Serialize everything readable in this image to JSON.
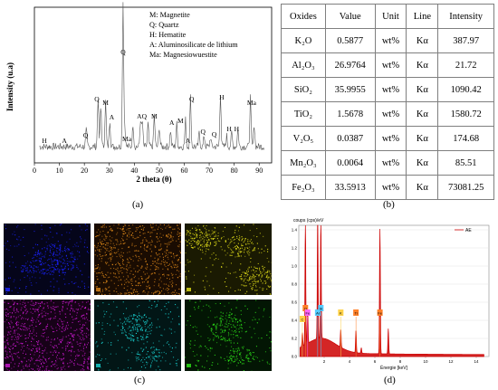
{
  "xrd": {
    "ylabel": "Intensity (u.a)",
    "xlabel": "2 theta (θ)",
    "legend": [
      "M: Magnetite",
      "Q: Quartz",
      "H: Hematite",
      "A: Aluminosilicate de lithium",
      "Ma: Magnesiowuestite"
    ],
    "xticks": [
      "0",
      "10",
      "20",
      "30",
      "40",
      "50",
      "60",
      "70",
      "80",
      "90"
    ],
    "peak_labels": [
      {
        "t": "H",
        "x": 4
      },
      {
        "t": "A",
        "x": 12
      },
      {
        "t": "Q",
        "x": 20.5
      },
      {
        "t": "Q",
        "x": 25
      },
      {
        "t": "M",
        "x": 28.5
      },
      {
        "t": "A",
        "x": 31
      },
      {
        "t": "Q",
        "x": 35.5
      },
      {
        "t": "Ma",
        "x": 37
      },
      {
        "t": "A",
        "x": 42
      },
      {
        "t": "Q",
        "x": 44
      },
      {
        "t": "M",
        "x": 48
      },
      {
        "t": "A",
        "x": 55
      },
      {
        "t": "M",
        "x": 58.5
      },
      {
        "t": "A",
        "x": 61.5
      },
      {
        "t": "Q",
        "x": 63
      },
      {
        "t": "Q",
        "x": 67.5
      },
      {
        "t": "Q",
        "x": 72
      },
      {
        "t": "H",
        "x": 75
      },
      {
        "t": "H",
        "x": 78
      },
      {
        "t": "H",
        "x": 81
      },
      {
        "t": "Ma",
        "x": 87
      }
    ],
    "caption": "(a)"
  },
  "table": {
    "headers": [
      "Oxides",
      "Value",
      "Unit",
      "Line",
      "Intensity"
    ],
    "rows": [
      {
        "oxide": "K₂O",
        "value": "0.5877",
        "unit": "wt%",
        "line": "Kα",
        "intensity": "387.97"
      },
      {
        "oxide": "Al₂O₃",
        "value": "26.9764",
        "unit": "wt%",
        "line": "Kα",
        "intensity": "21.72"
      },
      {
        "oxide": "SiO₂",
        "value": "35.9955",
        "unit": "wt%",
        "line": "Kα",
        "intensity": "1090.42"
      },
      {
        "oxide": "TiO₂",
        "value": "1.5678",
        "unit": "wt%",
        "line": "Kα",
        "intensity": "1580.72"
      },
      {
        "oxide": "V₂O₅",
        "value": "0.0387",
        "unit": "wt%",
        "line": "Kα",
        "intensity": "174.68"
      },
      {
        "oxide": "Mn₂O₃",
        "value": "0.0064",
        "unit": "wt%",
        "line": "Kα",
        "intensity": "85.51"
      },
      {
        "oxide": "Fe₂O₃",
        "value": "33.5913",
        "unit": "wt%",
        "line": "Kα",
        "intensity": "73081.25"
      }
    ],
    "caption": "(b)"
  },
  "maps": {
    "tiles": [
      {
        "color": "#1a22ff",
        "bg": "#05051a"
      },
      {
        "color": "#e08a1a",
        "bg": "#1a0c02"
      },
      {
        "color": "#e6e21a",
        "bg": "#1a1a02"
      },
      {
        "color": "#d01ad6",
        "bg": "#170218"
      },
      {
        "color": "#1ad6d6",
        "bg": "#021616"
      },
      {
        "color": "#2ee61a",
        "bg": "#031604"
      }
    ],
    "caption": "(c)"
  },
  "eds": {
    "ylabel": "coups (cps)/eV",
    "xlabel": "Énergie [keV]",
    "legend": "AE",
    "yticks": [
      "0.0",
      "0.2",
      "0.4",
      "0.6",
      "0.8",
      "1.0",
      "1.2",
      "1.4"
    ],
    "xticks": [
      "2",
      "4",
      "6",
      "8",
      "10",
      "12",
      "14"
    ],
    "element_tags": [
      {
        "t": "C",
        "e": 0.28,
        "c": "#ffd24a"
      },
      {
        "t": "O",
        "e": 0.52,
        "c": "#ff7f27"
      },
      {
        "t": "Fe",
        "e": 0.7,
        "c": "#ff66ff"
      },
      {
        "t": "Al",
        "e": 1.49,
        "c": "#55ccff"
      },
      {
        "t": "Si",
        "e": 1.74,
        "c": "#55ccff"
      },
      {
        "t": "K",
        "e": 3.31,
        "c": "#ffd24a"
      },
      {
        "t": "Ti",
        "e": 4.51,
        "c": "#ff7f27"
      },
      {
        "t": "Fe",
        "e": 6.4,
        "c": "#ff7f27"
      }
    ],
    "line_color": "#cc0000",
    "caption": "(d)"
  }
}
